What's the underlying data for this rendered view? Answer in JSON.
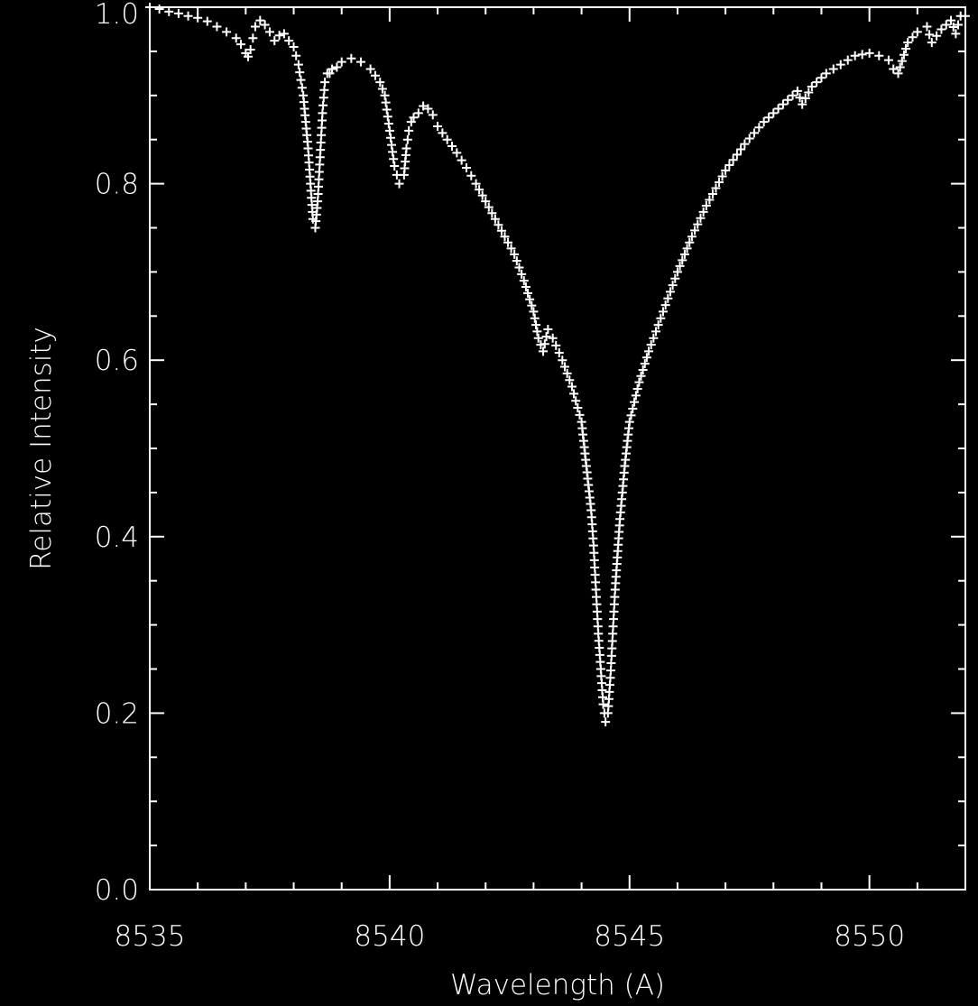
{
  "chart_data": {
    "type": "scatter",
    "title": "",
    "xlabel": "Wavelength (A)",
    "ylabel": "Relative Intensity",
    "xlim": [
      8535,
      8552
    ],
    "ylim": [
      0.0,
      1.0
    ],
    "x_ticks": [
      "8535",
      "8540",
      "8545",
      "8550"
    ],
    "y_ticks": [
      "0.0",
      "0.2",
      "0.4",
      "0.6",
      "0.8",
      "1.0"
    ],
    "marker": "plus",
    "grid": false,
    "legend": "none",
    "colors": {
      "background": "#000000",
      "foreground": "#ffffff"
    },
    "series": [
      {
        "x": [
          8535.0,
          8535.2,
          8535.4,
          8535.6,
          8535.8,
          8536.0,
          8536.2,
          8536.4,
          8536.6,
          8536.8,
          8536.9,
          8537.0,
          8537.05,
          8537.1,
          8537.15,
          8537.2,
          8537.3,
          8537.4,
          8537.5,
          8537.6,
          8537.7,
          8537.8,
          8537.9,
          8538.0,
          8538.1,
          8538.2,
          8538.3,
          8538.35,
          8538.4,
          8538.45,
          8538.5,
          8538.55,
          8538.6,
          8538.65,
          8538.7,
          8538.75,
          8538.8,
          8538.9,
          8539.0,
          8539.2,
          8539.4,
          8539.6,
          8539.8,
          8539.9,
          8540.0,
          8540.1,
          8540.2,
          8540.3,
          8540.35,
          8540.4,
          8540.45,
          8540.5,
          8540.6,
          8540.7,
          8540.8,
          8540.9,
          8541.0,
          8541.2,
          8541.4,
          8541.6,
          8541.8,
          8542.0,
          8542.2,
          8542.4,
          8542.6,
          8542.8,
          8543.0,
          8543.1,
          8543.2,
          8543.3,
          8543.4,
          8543.6,
          8543.8,
          8544.0,
          8544.1,
          8544.2,
          8544.25,
          8544.3,
          8544.35,
          8544.4,
          8544.45,
          8544.5,
          8544.55,
          8544.6,
          8544.65,
          8544.7,
          8544.8,
          8544.9,
          8545.0,
          8545.2,
          8545.4,
          8545.6,
          8545.8,
          8546.0,
          8546.3,
          8546.6,
          8547.0,
          8547.4,
          8547.8,
          8548.2,
          8548.5,
          8548.6,
          8548.8,
          8549.1,
          8549.4,
          8549.7,
          8550.0,
          8550.2,
          8550.4,
          8550.5,
          8550.6,
          8550.8,
          8551.0,
          8551.2,
          8551.3,
          8551.5,
          8551.7,
          8551.8,
          8551.9,
          8552.0
        ],
        "y": [
          1.0,
          0.998,
          0.995,
          0.993,
          0.99,
          0.988,
          0.984,
          0.978,
          0.972,
          0.965,
          0.958,
          0.948,
          0.944,
          0.952,
          0.965,
          0.978,
          0.985,
          0.98,
          0.972,
          0.962,
          0.968,
          0.97,
          0.962,
          0.955,
          0.935,
          0.9,
          0.84,
          0.8,
          0.76,
          0.75,
          0.78,
          0.83,
          0.88,
          0.915,
          0.925,
          0.925,
          0.93,
          0.932,
          0.938,
          0.942,
          0.938,
          0.93,
          0.915,
          0.9,
          0.86,
          0.82,
          0.8,
          0.81,
          0.84,
          0.86,
          0.87,
          0.875,
          0.88,
          0.888,
          0.885,
          0.878,
          0.865,
          0.85,
          0.835,
          0.818,
          0.8,
          0.78,
          0.76,
          0.74,
          0.72,
          0.69,
          0.655,
          0.625,
          0.61,
          0.635,
          0.625,
          0.6,
          0.57,
          0.53,
          0.48,
          0.43,
          0.39,
          0.34,
          0.29,
          0.25,
          0.21,
          0.19,
          0.2,
          0.24,
          0.29,
          0.34,
          0.42,
          0.48,
          0.53,
          0.575,
          0.61,
          0.64,
          0.67,
          0.7,
          0.74,
          0.775,
          0.815,
          0.845,
          0.87,
          0.89,
          0.905,
          0.89,
          0.91,
          0.925,
          0.935,
          0.945,
          0.948,
          0.945,
          0.94,
          0.93,
          0.925,
          0.96,
          0.972,
          0.978,
          0.96,
          0.975,
          0.985,
          0.97,
          0.99,
          0.99
        ]
      }
    ]
  }
}
